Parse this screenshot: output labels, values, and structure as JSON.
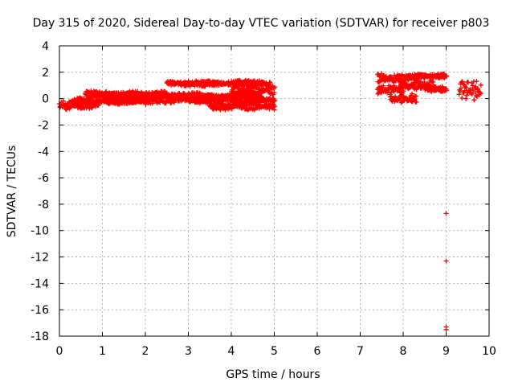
{
  "chart_data": {
    "type": "scatter",
    "title": "Day 315 of 2020, Sidereal Day-to-day VTEC variation (SDTVAR) for receiver p803",
    "xlabel": "GPS time / hours",
    "ylabel": "SDTVAR / TECUs",
    "xlim": [
      0,
      10
    ],
    "ylim": [
      -18,
      4
    ],
    "xticks": [
      "0",
      "1",
      "2",
      "3",
      "4",
      "5",
      "6",
      "7",
      "8",
      "9",
      "10"
    ],
    "yticks": [
      "4",
      "2",
      "0",
      "-2",
      "-4",
      "-6",
      "-8",
      "-10",
      "-12",
      "-14",
      "-16",
      "-18"
    ],
    "grid": true,
    "marker": "+",
    "color": "#ff0000",
    "bands": [
      {
        "x": [
          0.0,
          0.9
        ],
        "y": [
          -0.9,
          -0.1
        ]
      },
      {
        "x": [
          0.3,
          2.0
        ],
        "y": [
          -0.5,
          0.1
        ]
      },
      {
        "x": [
          0.6,
          2.5
        ],
        "y": [
          0.1,
          0.6
        ]
      },
      {
        "x": [
          1.0,
          3.5
        ],
        "y": [
          -0.4,
          0.3
        ]
      },
      {
        "x": [
          2.0,
          4.7
        ],
        "y": [
          -0.1,
          0.5
        ]
      },
      {
        "x": [
          2.5,
          4.9
        ],
        "y": [
          0.9,
          1.4
        ]
      },
      {
        "x": [
          3.0,
          5.0
        ],
        "y": [
          -0.4,
          0.2
        ]
      },
      {
        "x": [
          3.5,
          5.0
        ],
        "y": [
          -0.9,
          -0.3
        ]
      },
      {
        "x": [
          4.0,
          5.0
        ],
        "y": [
          0.3,
          1.0
        ]
      },
      {
        "x": [
          7.4,
          8.4
        ],
        "y": [
          1.2,
          1.9
        ]
      },
      {
        "x": [
          7.4,
          8.0
        ],
        "y": [
          0.3,
          1.1
        ]
      },
      {
        "x": [
          7.9,
          8.7
        ],
        "y": [
          0.6,
          1.4
        ]
      },
      {
        "x": [
          8.1,
          9.0
        ],
        "y": [
          1.5,
          1.9
        ]
      },
      {
        "x": [
          7.7,
          8.3
        ],
        "y": [
          -0.4,
          0.4
        ]
      },
      {
        "x": [
          8.5,
          9.0
        ],
        "y": [
          0.5,
          1.0
        ]
      },
      {
        "x": [
          9.3,
          9.8
        ],
        "y": [
          -0.3,
          1.7
        ]
      }
    ],
    "outliers": [
      {
        "x": 9.0,
        "y": -8.7
      },
      {
        "x": 9.0,
        "y": -12.3
      },
      {
        "x": 9.0,
        "y": -17.3
      },
      {
        "x": 9.0,
        "y": -17.5
      }
    ]
  }
}
